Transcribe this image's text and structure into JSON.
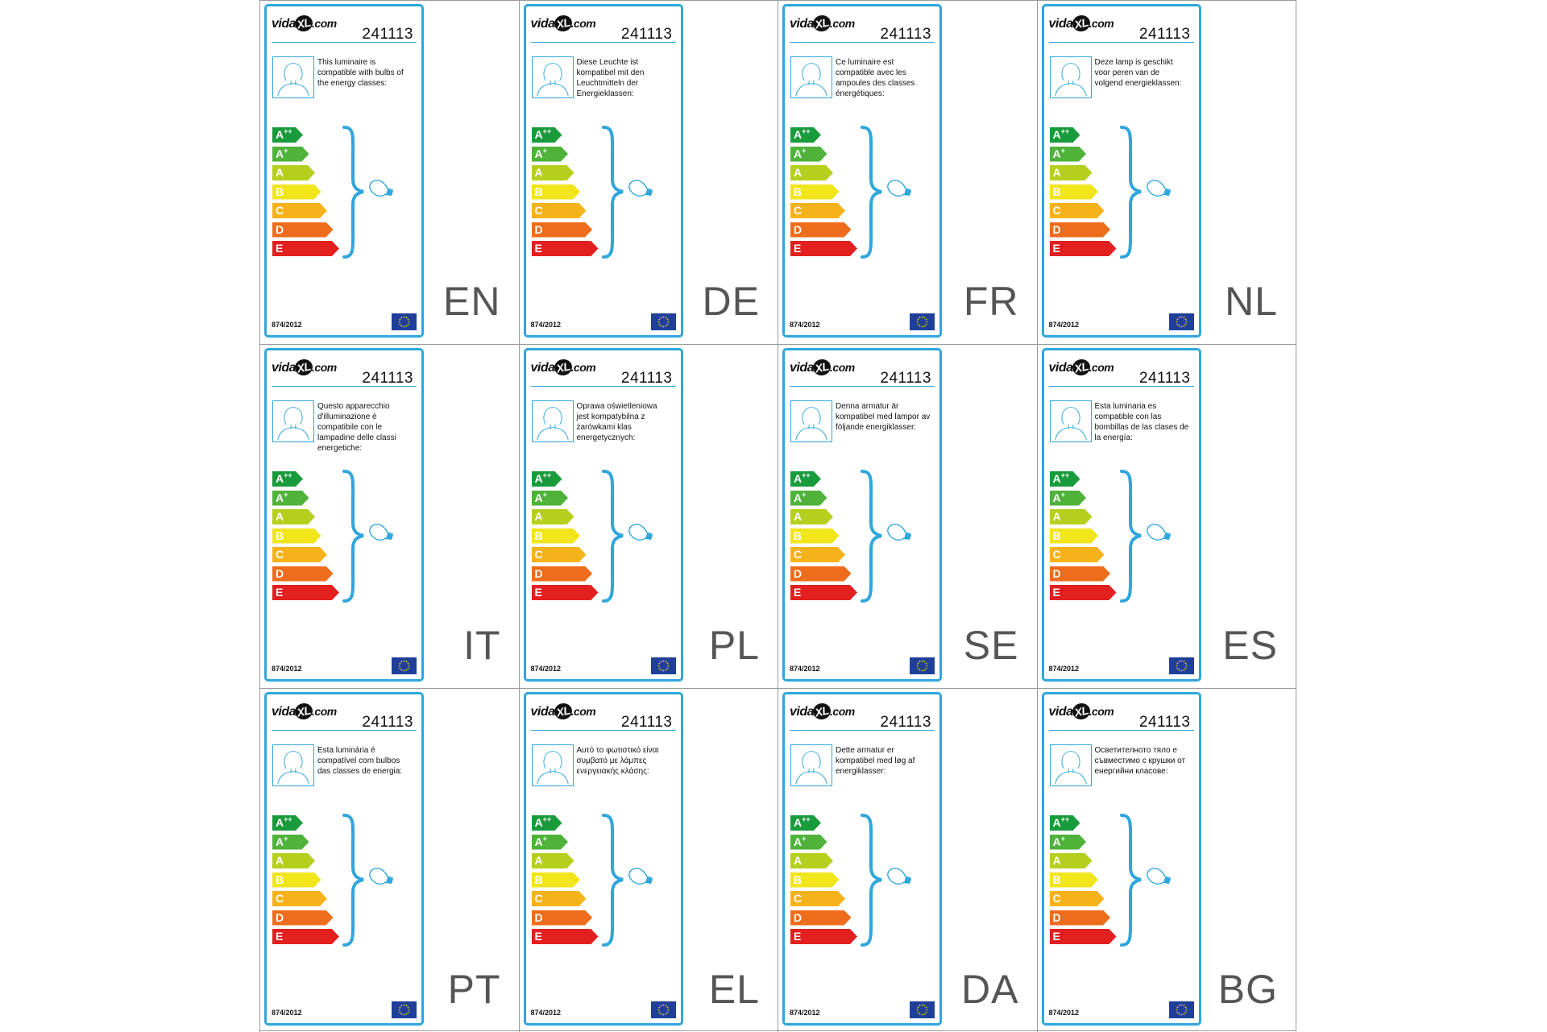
{
  "brand": {
    "prefix": "vida",
    "xl": "XL",
    "suffix": ".com"
  },
  "product_id": "241113",
  "regulation": "874/2012",
  "energy_classes": [
    {
      "letter": "A",
      "sup": "++",
      "color": "#1a9b3b"
    },
    {
      "letter": "A",
      "sup": "+",
      "color": "#4fb33a"
    },
    {
      "letter": "A",
      "sup": "",
      "color": "#b5cf1f"
    },
    {
      "letter": "B",
      "sup": "",
      "color": "#f1e51b"
    },
    {
      "letter": "C",
      "sup": "",
      "color": "#f6b21b"
    },
    {
      "letter": "D",
      "sup": "",
      "color": "#ee6d1c"
    },
    {
      "letter": "E",
      "sup": "",
      "color": "#e2201f"
    }
  ],
  "accent_color": "#2fa6dc",
  "labels": [
    {
      "lang": "EN",
      "text": "This luminaire is compatible with bulbs of the energy classes:"
    },
    {
      "lang": "DE",
      "text": "Diese Leuchte ist kompatibel mit den Leuchtmitteln der Energieklassen:"
    },
    {
      "lang": "FR",
      "text": "Ce luminaire est compatible avec les ampoules des classes énergétiques:"
    },
    {
      "lang": "NL",
      "text": "Deze lamp is geschikt voor peren van de volgend energieklassen:"
    },
    {
      "lang": "IT",
      "text": "Questo apparecchio d'illuminazione è compatibile con le lampadine delle classi energetiche:"
    },
    {
      "lang": "PL",
      "text": "Oprawa oświetleniowa jest kompatybilna z żarówkami klas energetycznych:"
    },
    {
      "lang": "SE",
      "text": "Denna armatur är kompatibel med lampor av följande energiklasser:"
    },
    {
      "lang": "ES",
      "text": "Esta luminaria es compatible con las bombillas de las clases de la energía:"
    },
    {
      "lang": "PT",
      "text": "Esta luminária é compatível com bulbos das classes de energia:"
    },
    {
      "lang": "EL",
      "text": "Αυτό το φωτιστικό είναι συμβατό με λάμπες ενεργειακής κλάσης:"
    },
    {
      "lang": "DA",
      "text": "Dette armatur er kompatibel med løg af energiklasser:"
    },
    {
      "lang": "BG",
      "text": "Осветителното тяло е съвместимо с крушки от енергийни класове:"
    }
  ]
}
